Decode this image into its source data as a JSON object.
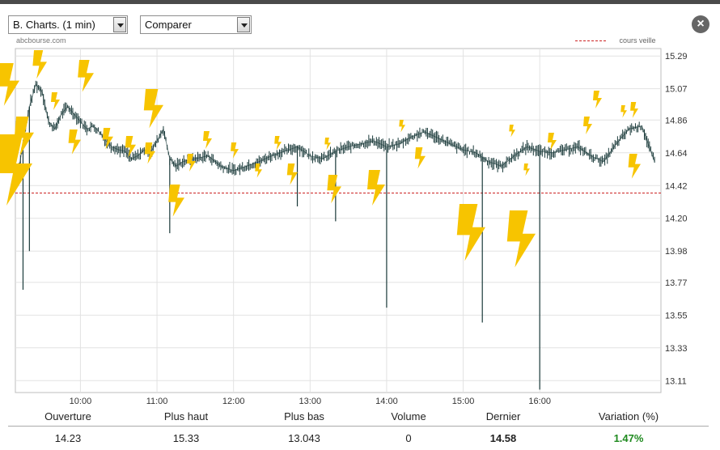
{
  "controls": {
    "chart_select": "B. Charts. (1 min)",
    "compare_select": "Comparer",
    "close_icon": "close-icon"
  },
  "source": "abcbourse.com",
  "legend": {
    "label": "cours veille",
    "color": "#cc2222"
  },
  "colors": {
    "candle": "#1a3a3a",
    "grid": "#e2e2e2",
    "reference": "#cc2222",
    "bolt": "#f7c400",
    "variation": "#1f8a1f"
  },
  "chart_data": {
    "type": "line",
    "title": "",
    "xlabel": "",
    "ylabel": "",
    "x_ticks": [
      "10:00",
      "11:00",
      "12:00",
      "13:00",
      "14:00",
      "15:00",
      "16:00"
    ],
    "y_ticks": [
      "13.11",
      "13.33",
      "13.55",
      "13.77",
      "13.98",
      "14.20",
      "14.42",
      "14.64",
      "14.86",
      "15.07",
      "15.29"
    ],
    "xlim": [
      "09:09",
      "17:35"
    ],
    "ylim": [
      13.03,
      15.34
    ],
    "grid": true,
    "reference_line": {
      "name": "cours veille",
      "value": 14.37
    },
    "series": [
      {
        "x": [
          "09:10",
          "09:15",
          "09:20",
          "09:25",
          "09:30",
          "09:35",
          "09:40",
          "09:45",
          "09:50",
          "09:55",
          "10:00",
          "10:05",
          "10:10",
          "10:15",
          "10:20",
          "10:25",
          "10:30",
          "10:35",
          "10:40",
          "10:45",
          "10:50",
          "10:55",
          "11:00",
          "11:05",
          "11:10",
          "11:15",
          "11:20",
          "11:30",
          "11:40",
          "11:50",
          "12:00",
          "12:10",
          "12:20",
          "12:30",
          "12:40",
          "12:50",
          "13:00",
          "13:10",
          "13:20",
          "13:30",
          "13:40",
          "13:50",
          "14:00",
          "14:10",
          "14:20",
          "14:30",
          "14:40",
          "14:50",
          "15:00",
          "15:10",
          "15:20",
          "15:30",
          "15:40",
          "15:50",
          "16:00",
          "16:10",
          "16:20",
          "16:30",
          "16:40",
          "16:50",
          "17:00",
          "17:10",
          "17:20",
          "17:30"
        ],
        "values": [
          14.45,
          14.7,
          14.95,
          15.1,
          15.05,
          14.85,
          14.8,
          14.9,
          14.95,
          14.9,
          14.85,
          14.8,
          14.82,
          14.78,
          14.72,
          14.68,
          14.66,
          14.65,
          14.6,
          14.62,
          14.66,
          14.64,
          14.72,
          14.8,
          14.6,
          14.55,
          14.58,
          14.6,
          14.62,
          14.55,
          14.52,
          14.55,
          14.58,
          14.62,
          14.65,
          14.68,
          14.62,
          14.6,
          14.65,
          14.68,
          14.7,
          14.72,
          14.68,
          14.7,
          14.75,
          14.78,
          14.74,
          14.7,
          14.66,
          14.64,
          14.58,
          14.55,
          14.62,
          14.68,
          14.65,
          14.64,
          14.66,
          14.68,
          14.62,
          14.58,
          14.7,
          14.8,
          14.82,
          14.58
        ]
      }
    ],
    "spikes": [
      {
        "x": "09:15",
        "low": 13.72
      },
      {
        "x": "09:20",
        "low": 13.98
      },
      {
        "x": "11:10",
        "low": 14.1
      },
      {
        "x": "12:50",
        "low": 14.28
      },
      {
        "x": "13:20",
        "low": 14.18
      },
      {
        "x": "14:00",
        "low": 13.6
      },
      {
        "x": "15:15",
        "low": 13.5
      },
      {
        "x": "16:00",
        "low": 13.05
      }
    ]
  },
  "stats": [
    {
      "label": "Ouverture",
      "value": "14.23"
    },
    {
      "label": "Plus haut",
      "value": "15.33"
    },
    {
      "label": "Plus bas",
      "value": "13.043"
    },
    {
      "label": "Volume",
      "value": "0"
    },
    {
      "label": "Dernier",
      "value": "14.58"
    },
    {
      "label": "Variation (%)",
      "value": "1.47%"
    }
  ]
}
